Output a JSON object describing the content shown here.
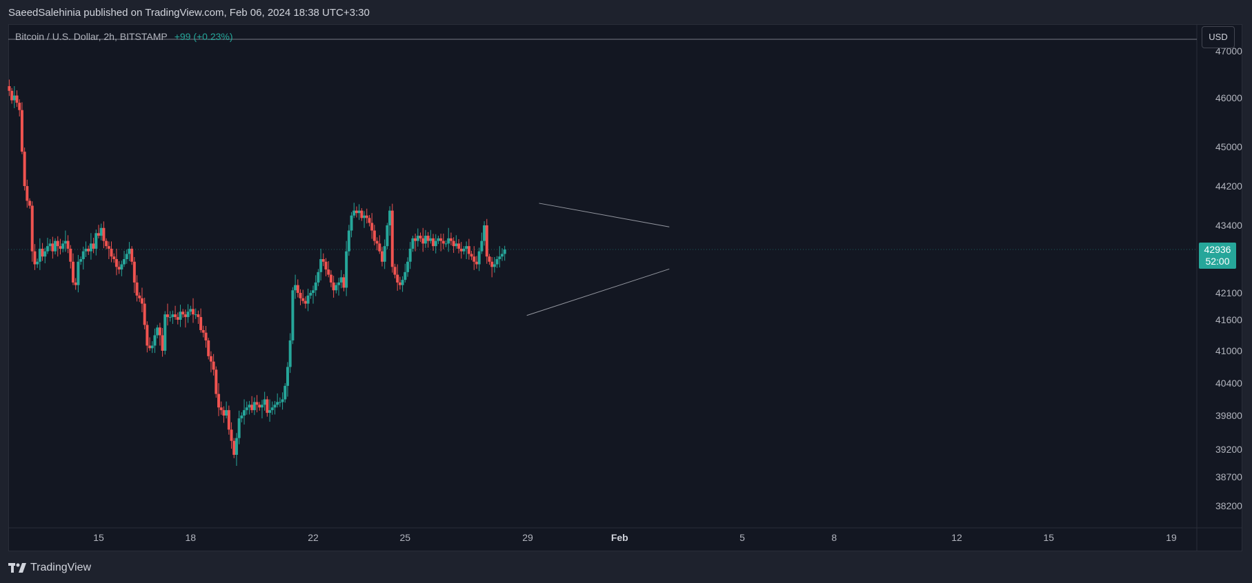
{
  "header": {
    "published": "SaeedSalehinia published on TradingView.com, Feb 06, 2024 18:38 UTC+3:30"
  },
  "legend": {
    "symbol": "Bitcoin / U.S. Dollar, 2h, BITSTAMP",
    "change": "+99 (+0.23%)"
  },
  "currency_button": "USD",
  "last_price": {
    "price": "42936",
    "countdown": "52:00"
  },
  "footer": {
    "brand": "TradingView"
  },
  "colors": {
    "up": "#26a69a",
    "down": "#ef5350",
    "trendline": "#9598a1",
    "background": "#131722"
  },
  "chart_data": {
    "type": "candlestick",
    "title": "",
    "xlabel": "",
    "ylabel": "",
    "y_ticks": [
      "47000",
      "46000",
      "45000",
      "44200",
      "43400",
      "42100",
      "41600",
      "41000",
      "40400",
      "39800",
      "39200",
      "38700",
      "38200"
    ],
    "x_ticks": [
      "15",
      "18",
      "22",
      "25",
      "29",
      "Feb",
      "5",
      "8",
      "12",
      "15",
      "19"
    ],
    "x_tick_bold": [
      "Feb"
    ],
    "x_range_days": [
      12,
      20.8
    ],
    "price_label": "42936",
    "series": [
      {
        "interval_hours": 2,
        "start_day": 12.0,
        "closes": [
          46250,
          46150,
          45950,
          46050,
          45900,
          45750,
          44900,
          44200,
          43900,
          43800,
          42900,
          42650,
          42700,
          42950,
          42800,
          42900,
          43000,
          43050,
          42900,
          43100,
          43000,
          42950,
          43050,
          43100,
          42950,
          42700,
          42300,
          42250,
          42700,
          42750,
          42900,
          42950,
          42900,
          43050,
          42950,
          43250,
          43200,
          43350,
          43100,
          43000,
          42950,
          42800,
          42750,
          42600,
          42550,
          42650,
          42750,
          42850,
          42950,
          42700,
          42300,
          42050,
          42000,
          41900,
          41500,
          41100,
          41050,
          41100,
          41300,
          41450,
          41300,
          41000,
          41700,
          41650,
          41650,
          41700,
          41650,
          41600,
          41750,
          41700,
          41650,
          41750,
          41800,
          41700,
          41700,
          41650,
          41400,
          41350,
          41200,
          40900,
          40800,
          40650,
          40200,
          39950,
          39900,
          39800,
          39900,
          39550,
          39350,
          39100,
          39400,
          39750,
          39800,
          39900,
          39950,
          40000,
          39900,
          40050,
          40000,
          39950,
          40000,
          40100,
          39850,
          39900,
          39950,
          40000,
          40050,
          40050,
          40100,
          40350,
          40700,
          41200,
          42150,
          42250,
          42100,
          42000,
          41950,
          41900,
          42050,
          42100,
          42150,
          42300,
          42500,
          42750,
          42700,
          42550,
          42450,
          42300,
          42150,
          42250,
          42300,
          42400,
          42200,
          42900,
          43300,
          43600,
          43700,
          43650,
          43700,
          43550,
          43600,
          43550,
          43450,
          43300,
          43100,
          43050,
          42900,
          42700,
          43000,
          43400,
          43700,
          42600,
          42450,
          42300,
          42250,
          42350,
          42500,
          42700,
          42950,
          43150,
          43100,
          43200,
          43150,
          43050,
          43200,
          43100,
          43150,
          43000,
          43100,
          43150,
          43100,
          43050,
          43050,
          43150,
          43100,
          43000,
          43050,
          42950,
          42900,
          42950,
          43000,
          42850,
          42800,
          42700,
          42650,
          42900,
          43100,
          43400,
          42800,
          42700,
          42600,
          42650,
          42750,
          42800,
          42850,
          42936
        ]
      }
    ],
    "trendlines": [
      {
        "name": "",
        "from": [
          29.37,
          43850
        ],
        "to": [
          33.62,
          43370
        ]
      },
      {
        "name": "",
        "from": [
          28.97,
          41680
        ],
        "to": [
          33.62,
          42560
        ]
      }
    ]
  }
}
